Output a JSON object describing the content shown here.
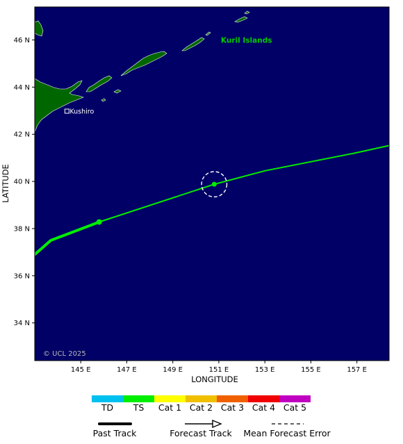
{
  "map": {
    "xaxis_title": "LONGITUDE",
    "yaxis_title": "LATITUDE",
    "lon_ticks": [
      {
        "value": 145,
        "label": "145 E"
      },
      {
        "value": 147,
        "label": "147 E"
      },
      {
        "value": 149,
        "label": "149 E"
      },
      {
        "value": 151,
        "label": "151 E"
      },
      {
        "value": 153,
        "label": "153 E"
      },
      {
        "value": 155,
        "label": "155 E"
      },
      {
        "value": 157,
        "label": "157 E"
      }
    ],
    "lat_ticks": [
      {
        "value": 46,
        "label": "46 N"
      },
      {
        "value": 44,
        "label": "44 N"
      },
      {
        "value": 42,
        "label": "42 N"
      },
      {
        "value": 40,
        "label": "40 N"
      },
      {
        "value": 38,
        "label": "38 N"
      },
      {
        "value": 36,
        "label": "36 N"
      },
      {
        "value": 34,
        "label": "34 N"
      }
    ],
    "lon_range": [
      143.0,
      158.4
    ],
    "lat_range": [
      32.4,
      47.4
    ],
    "ocean_color": "#000066",
    "land_color": "#006600",
    "copyright": "© UCL 2025",
    "places": [
      {
        "name": "Kushiro",
        "lon": 144.4,
        "lat": 42.98,
        "marker": "square"
      }
    ],
    "region_labels": [
      {
        "name": "Kuril Islands",
        "lon": 151.0,
        "lat": 46.0,
        "color": "#00cc00"
      }
    ],
    "past_track": {
      "category": "TS",
      "color": "#00ee00",
      "points": [
        [
          143.0,
          36.9
        ],
        [
          143.7,
          37.5
        ],
        [
          145.8,
          38.28
        ]
      ],
      "positions": [
        [
          145.8,
          38.28
        ]
      ]
    },
    "forecast_track": {
      "category": "TS",
      "color": "#00ee00",
      "points": [
        [
          145.8,
          38.28
        ],
        [
          150.8,
          39.88
        ],
        [
          153.0,
          40.45
        ],
        [
          156.9,
          41.2
        ],
        [
          158.4,
          41.52
        ]
      ],
      "positions": [
        [
          150.8,
          39.88
        ]
      ]
    },
    "forecast_error_circle": {
      "lon": 150.8,
      "lat": 39.88,
      "radius_deg": 0.55
    }
  },
  "legend": {
    "categories": [
      {
        "label": "TD",
        "color": "#00c0f0"
      },
      {
        "label": "TS",
        "color": "#00ee00"
      },
      {
        "label": "Cat 1",
        "color": "#ffff00"
      },
      {
        "label": "Cat 2",
        "color": "#f0c000"
      },
      {
        "label": "Cat 3",
        "color": "#f06000"
      },
      {
        "label": "Cat 4",
        "color": "#f00000"
      },
      {
        "label": "Cat 5",
        "color": "#c000c0"
      }
    ],
    "past_track_label": "Past Track",
    "forecast_track_label": "Forecast Track",
    "mean_error_label": "Mean Forecast Error"
  }
}
